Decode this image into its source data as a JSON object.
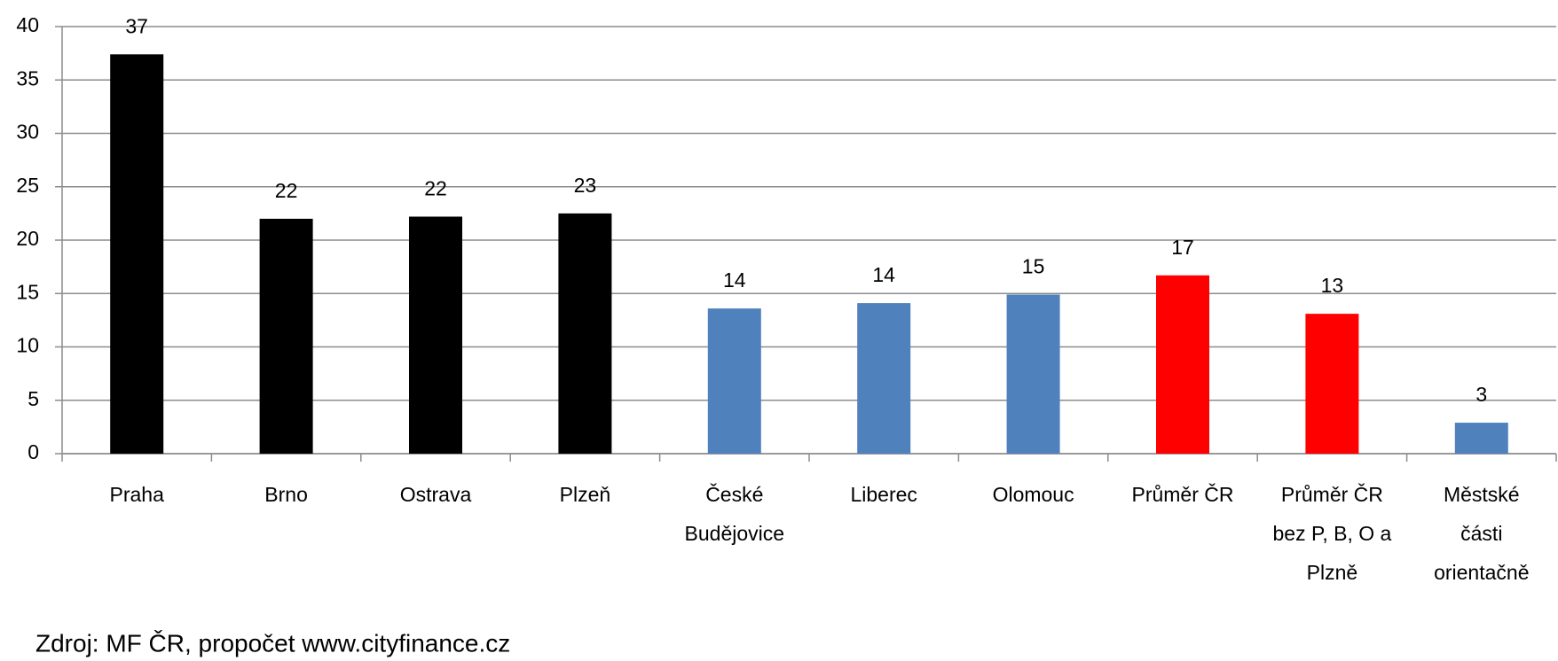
{
  "chart_data": {
    "type": "bar",
    "categories": [
      "Praha",
      "Brno",
      "Ostrava",
      "Plzeň",
      "České\nBudějovice",
      "Liberec",
      "Olomouc",
      "Průměr ČR",
      "Průměr ČR\nbez P, B, O a\nPlzně",
      "Městské\nčásti\norientačně"
    ],
    "values": [
      37.4,
      22,
      22.2,
      22.5,
      13.6,
      14.1,
      14.9,
      16.7,
      13.1,
      2.9
    ],
    "value_labels": [
      "37",
      "22",
      "22",
      "23",
      "14",
      "14",
      "15",
      "17",
      "13",
      "3"
    ],
    "colors": [
      "#000000",
      "#000000",
      "#000000",
      "#000000",
      "#4f81bd",
      "#4f81bd",
      "#4f81bd",
      "#ff0000",
      "#ff0000",
      "#4f81bd"
    ],
    "ylim": [
      0,
      40
    ],
    "yticks": [
      0,
      5,
      10,
      15,
      20,
      25,
      30,
      35,
      40
    ],
    "grid": true,
    "source": "Zdroj: MF ČR, propočet www.cityfinance.cz"
  }
}
